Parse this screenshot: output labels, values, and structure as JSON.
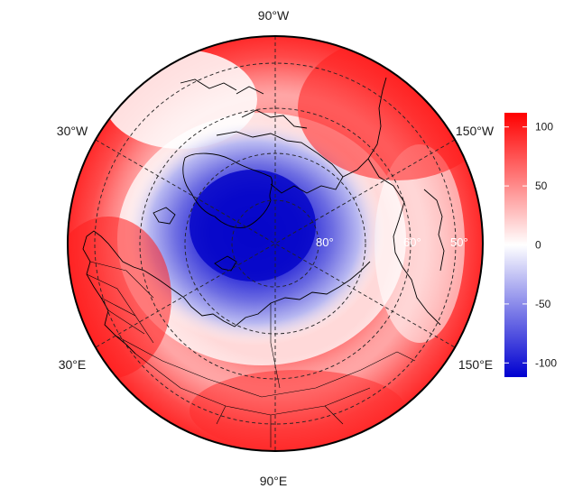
{
  "map": {
    "projection": "north-polar-stereographic",
    "center": "North Pole",
    "longitude_labels": {
      "top": "90°W",
      "upper_left": "30°W",
      "upper_right": "150°W",
      "lower_left": "30°E",
      "lower_right": "150°E",
      "bottom": "90°E"
    },
    "latitude_labels": [
      "80°",
      "60°",
      "50°"
    ],
    "field": {
      "description_colors": {
        "negative": "#0000cc",
        "zero": "#ffffff",
        "positive": "#ff0000"
      },
      "pole_minimum_value": -105,
      "rim_values": "positive, ~60-100"
    }
  },
  "colorbar": {
    "ticks": [
      "100",
      "50",
      "0",
      "-50",
      "-100"
    ],
    "tick_values": [
      100,
      50,
      0,
      -50,
      -100
    ],
    "range": [
      -112,
      112
    ],
    "colors": {
      "top": "#ff0000",
      "middle": "#ffffff",
      "bottom": "#0000d0"
    }
  }
}
